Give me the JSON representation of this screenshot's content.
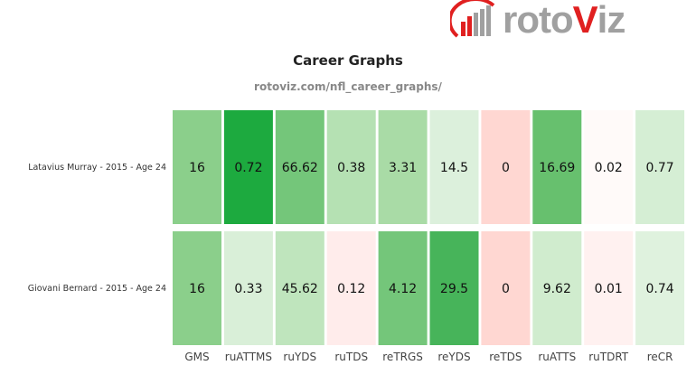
{
  "logo": {
    "text": "rotoViz"
  },
  "chart_data": {
    "type": "heatmap",
    "title": "Career Graphs",
    "subtitle": "rotoviz.com/nfl_career_graphs/",
    "columns": [
      "GMS",
      "ruATTMS",
      "ruYDS",
      "ruTDS",
      "reTRGS",
      "reYDS",
      "reTDS",
      "ruATTS",
      "ruTDRT",
      "reCR"
    ],
    "rows": [
      {
        "label": "Latavius Murray - 2015 - Age 24",
        "values": [
          "16",
          "0.72",
          "66.62",
          "0.38",
          "3.31",
          "14.5",
          "0",
          "16.69",
          "0.02",
          "0.77"
        ],
        "colors": [
          "#8bcf8b",
          "#1daa3f",
          "#74c67a",
          "#b5e1b3",
          "#a9dba6",
          "#dcf0dc",
          "#ffd7d2",
          "#67c06e",
          "#fffaf9",
          "#d5eed4"
        ]
      },
      {
        "label": "Giovani Bernard - 2015 - Age 24",
        "values": [
          "16",
          "0.33",
          "45.62",
          "0.12",
          "4.12",
          "29.5",
          "0",
          "9.62",
          "0.01",
          "0.74"
        ],
        "colors": [
          "#8bcf8b",
          "#d9efd8",
          "#bfe5bd",
          "#ffeceb",
          "#74c67a",
          "#47b45a",
          "#ffd7d2",
          "#d0ecce",
          "#fff1f0",
          "#dff2de"
        ]
      }
    ]
  }
}
